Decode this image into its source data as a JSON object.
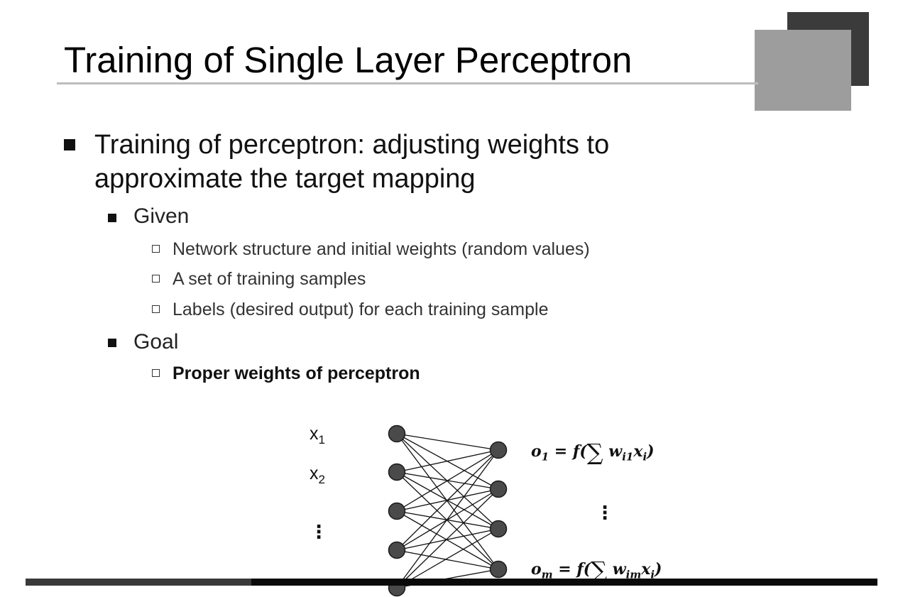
{
  "slide": {
    "title": "Training of Single Layer Perceptron",
    "bullet_main_line1": "Training of perceptron: adjusting weights to",
    "bullet_main_line2": "approximate the target mapping",
    "given": {
      "heading": "Given",
      "items": [
        "Network structure and initial weights (random values)",
        "A set of training samples",
        "Labels (desired output) for each training sample"
      ]
    },
    "goal": {
      "heading": "Goal",
      "items": [
        "Proper weights of perceptron"
      ]
    }
  },
  "diagram": {
    "inputs": [
      {
        "var": "x",
        "sub": "1"
      },
      {
        "var": "x",
        "sub": "2"
      }
    ],
    "input_dots": "⋮",
    "output_dots": "⋮",
    "equations": [
      {
        "lhs": "o",
        "lhs_sub": "1",
        "eq": " = f(",
        "sigma": "∑",
        "w": " w",
        "w_sub": "i1",
        "x": "x",
        "x_sub": "i",
        "close": ")"
      },
      {
        "lhs": "o",
        "lhs_sub": "m",
        "eq": " = f(",
        "sigma": "∑",
        "w": " w",
        "w_sub": "im",
        "x": "x",
        "x_sub": "i",
        "close": ")"
      }
    ],
    "colors": {
      "node_fill": "#4a4a4a",
      "node_stroke": "#1a1a1a",
      "edge": "#111111"
    }
  }
}
